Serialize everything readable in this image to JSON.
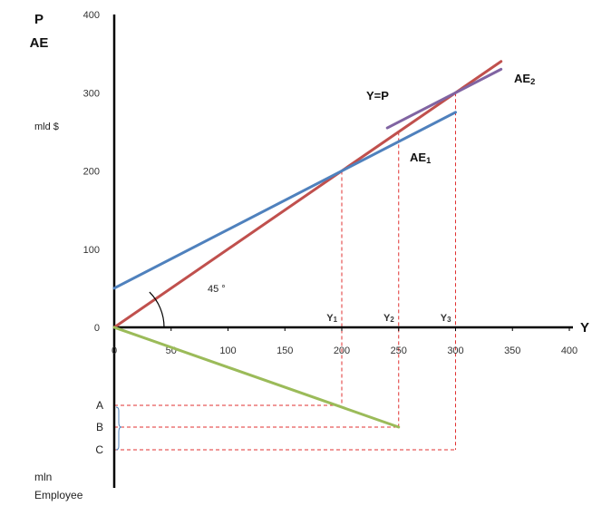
{
  "chart_data": {
    "type": "line",
    "y_axis_title": [
      "P",
      "AE"
    ],
    "y_unit": "mld $",
    "x_axis_title": "Y",
    "lower_axis_unit": [
      "mln",
      "Employee"
    ],
    "x_ticks": [
      0,
      50,
      100,
      150,
      200,
      250,
      300,
      350,
      400
    ],
    "y_ticks": [
      0,
      100,
      200,
      300,
      400
    ],
    "xlim": [
      0,
      400
    ],
    "ylim": [
      0,
      400
    ],
    "series": [
      {
        "name": "Y=P",
        "color": "#c0504d",
        "x": [
          0,
          340
        ],
        "y": [
          0,
          340
        ]
      },
      {
        "name": "AE1",
        "base": "AE",
        "sub": "1",
        "color": "#4f81bd",
        "x": [
          0,
          300
        ],
        "y": [
          50,
          275
        ]
      },
      {
        "name": "AE2",
        "base": "AE",
        "sub": "2",
        "color": "#8064a2",
        "x": [
          240,
          340
        ],
        "y": [
          255,
          330
        ]
      }
    ],
    "employment_line": {
      "color": "#9bbb59",
      "x": [
        0,
        250
      ],
      "level": [
        0,
        1
      ]
    },
    "angle_label": "45 °",
    "equilibria": [
      {
        "base": "Y",
        "sub": "1",
        "x": 200,
        "y": 200
      },
      {
        "base": "Y",
        "sub": "2",
        "x": 250,
        "y": 250
      },
      {
        "base": "Y",
        "sub": "3",
        "x": 300,
        "y": 300
      }
    ],
    "employment_levels": [
      {
        "label": "A",
        "x": 200
      },
      {
        "label": "B",
        "x": 250
      },
      {
        "label": "C",
        "x": 300
      }
    ],
    "guide_color": "#e03030"
  }
}
